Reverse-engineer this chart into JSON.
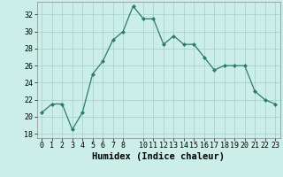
{
  "x": [
    0,
    1,
    2,
    3,
    4,
    5,
    6,
    7,
    8,
    9,
    10,
    11,
    12,
    13,
    14,
    15,
    16,
    17,
    18,
    19,
    20,
    21,
    22,
    23
  ],
  "y": [
    20.5,
    21.5,
    21.5,
    18.5,
    20.5,
    25,
    26.5,
    29,
    30,
    33,
    31.5,
    31.5,
    28.5,
    29.5,
    28.5,
    28.5,
    27,
    25.5,
    26,
    26,
    26,
    23,
    22,
    21.5
  ],
  "line_color": "#2d7a6e",
  "marker": "D",
  "marker_size": 2,
  "bg_color": "#cceee8",
  "grid_color": "#aad4ce",
  "xlabel": "Humidex (Indice chaleur)",
  "xlim": [
    -0.5,
    23.5
  ],
  "ylim": [
    17.5,
    33.5
  ],
  "yticks": [
    18,
    20,
    22,
    24,
    26,
    28,
    30,
    32
  ],
  "xticks": [
    0,
    1,
    2,
    3,
    4,
    5,
    6,
    7,
    8,
    10,
    11,
    12,
    13,
    14,
    15,
    16,
    17,
    18,
    19,
    20,
    21,
    22,
    23
  ],
  "xlabel_fontsize": 7.5,
  "tick_fontsize": 6
}
